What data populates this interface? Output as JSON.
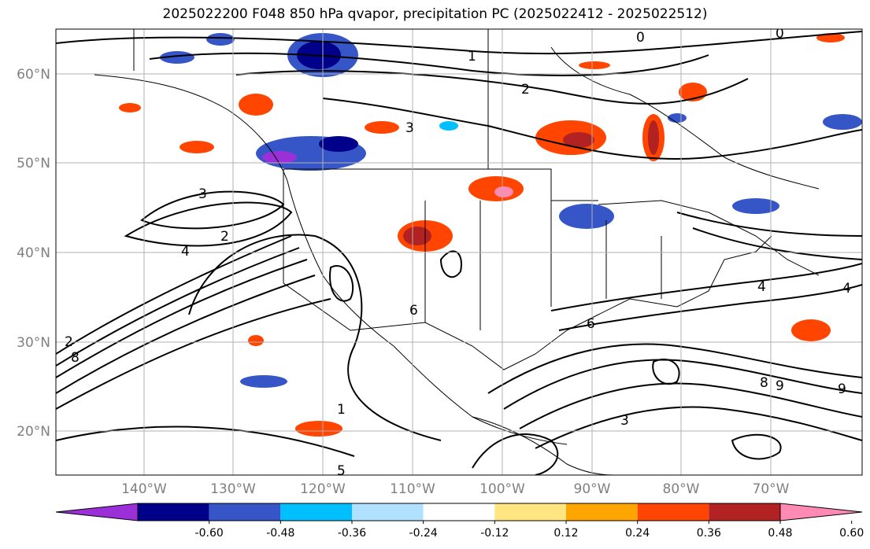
{
  "title": "2025022200 F048 850 hPa qvapor, precipitation PC (2025022412 - 2025022512)",
  "map": {
    "lat_labels": [
      "60°N",
      "50°N",
      "40°N",
      "30°N",
      "20°N"
    ],
    "lon_labels": [
      "140°W",
      "130°W",
      "120°W",
      "110°W",
      "100°W",
      "90°W",
      "80°W",
      "70°W"
    ],
    "gridline_color": "#b0b0b0",
    "label_color": "#808080"
  },
  "contour_labels": [
    "0",
    "0",
    "1",
    "2",
    "3",
    "3",
    "2",
    "4",
    "4",
    "4",
    "6",
    "1",
    "5",
    "6",
    "8",
    "9",
    "9",
    "8",
    "2",
    "3"
  ],
  "colorbar": {
    "tick_labels": [
      "-0.60",
      "-0.48",
      "-0.36",
      "-0.24",
      "-0.12",
      "0.12",
      "0.24",
      "0.36",
      "0.48",
      "0.60"
    ],
    "colors": [
      "#9b30d9",
      "#00008b",
      "#3656c8",
      "#00bfff",
      "#b0e2ff",
      "#ffffff",
      "#ffe680",
      "#ffa500",
      "#ff4500",
      "#b22222",
      "#ff8ab4"
    ]
  }
}
